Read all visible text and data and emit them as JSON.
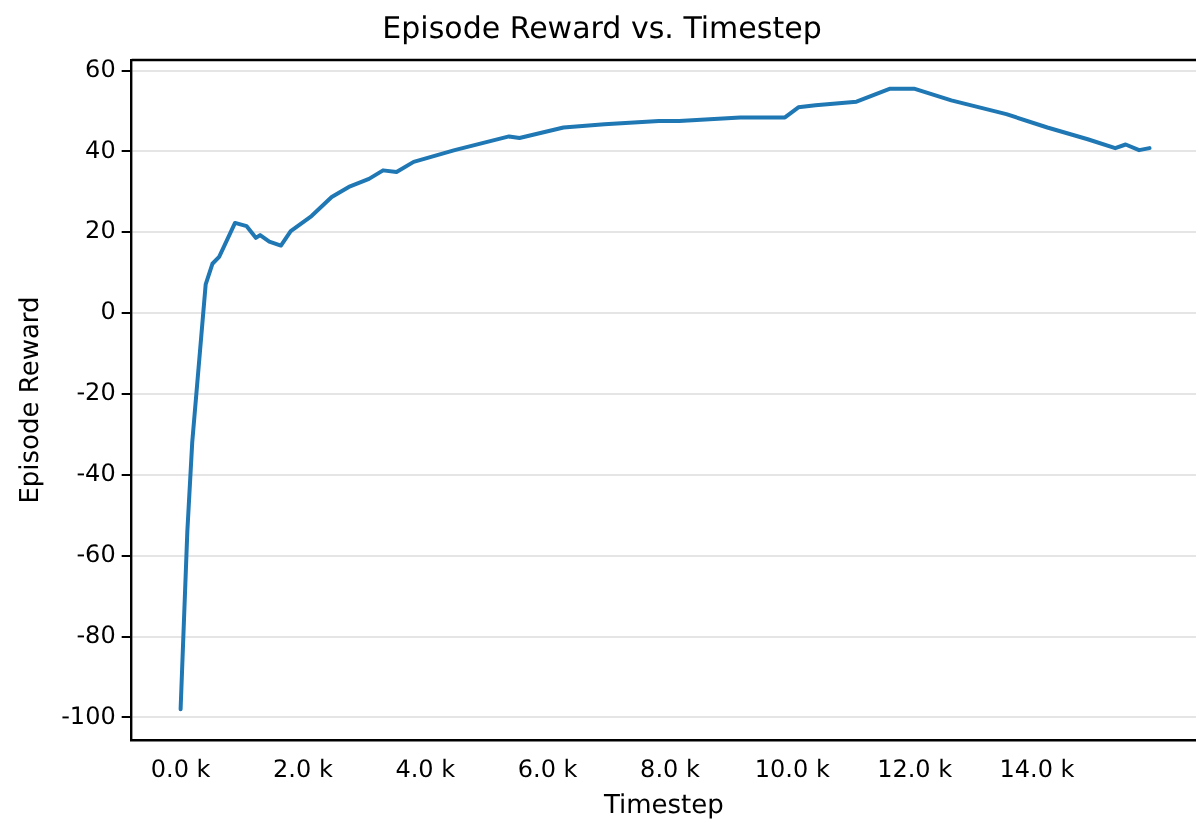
{
  "chart_data": {
    "type": "line",
    "title": "Episode Reward vs. Timestep",
    "xlabel": "Timestep",
    "ylabel": "Episode Reward",
    "x": [
      0,
      110,
      190,
      410,
      520,
      630,
      890,
      1080,
      1230,
      1300,
      1450,
      1640,
      1800,
      2140,
      2470,
      2750,
      3080,
      3310,
      3530,
      3810,
      4480,
      5370,
      5540,
      6260,
      6930,
      7820,
      8150,
      9150,
      9880,
      10100,
      10380,
      11050,
      11600,
      11990,
      12600,
      13500,
      14170,
      14830,
      15280,
      15450,
      15670,
      15840
    ],
    "series": [
      {
        "color": "#1f77b4",
        "values": [
          -98,
          -54,
          -32,
          7.1,
          12.2,
          13.9,
          22.3,
          21.5,
          18.6,
          19.3,
          17.7,
          16.7,
          20.3,
          24,
          28.7,
          31.2,
          33.2,
          35.3,
          34.9,
          37.4,
          40.3,
          43.7,
          43.3,
          45.9,
          46.7,
          47.5,
          47.5,
          48.4,
          48.4,
          50.9,
          51.4,
          52.3,
          55.5,
          55.5,
          52.6,
          49.2,
          45.9,
          43,
          40.8,
          41.7,
          40.3,
          40.8
        ]
      }
    ],
    "xlim": [
      -800,
      16600
    ],
    "ylim": [
      -105.6,
      62.6
    ],
    "xticks": [
      {
        "value": 0,
        "label": "0.0 k"
      },
      {
        "value": 2000,
        "label": "2.0 k"
      },
      {
        "value": 4000,
        "label": "4.0 k"
      },
      {
        "value": 6000,
        "label": "6.0 k"
      },
      {
        "value": 8000,
        "label": "8.0 k"
      },
      {
        "value": 10000,
        "label": "10.0 k"
      },
      {
        "value": 12000,
        "label": "12.0 k"
      },
      {
        "value": 14000,
        "label": "14.0 k"
      }
    ],
    "yticks": [
      -100,
      -80,
      -60,
      -40,
      -20,
      0,
      20,
      40,
      60
    ],
    "grid": "y",
    "legend": false,
    "marker": "none",
    "line_style": "solid"
  }
}
